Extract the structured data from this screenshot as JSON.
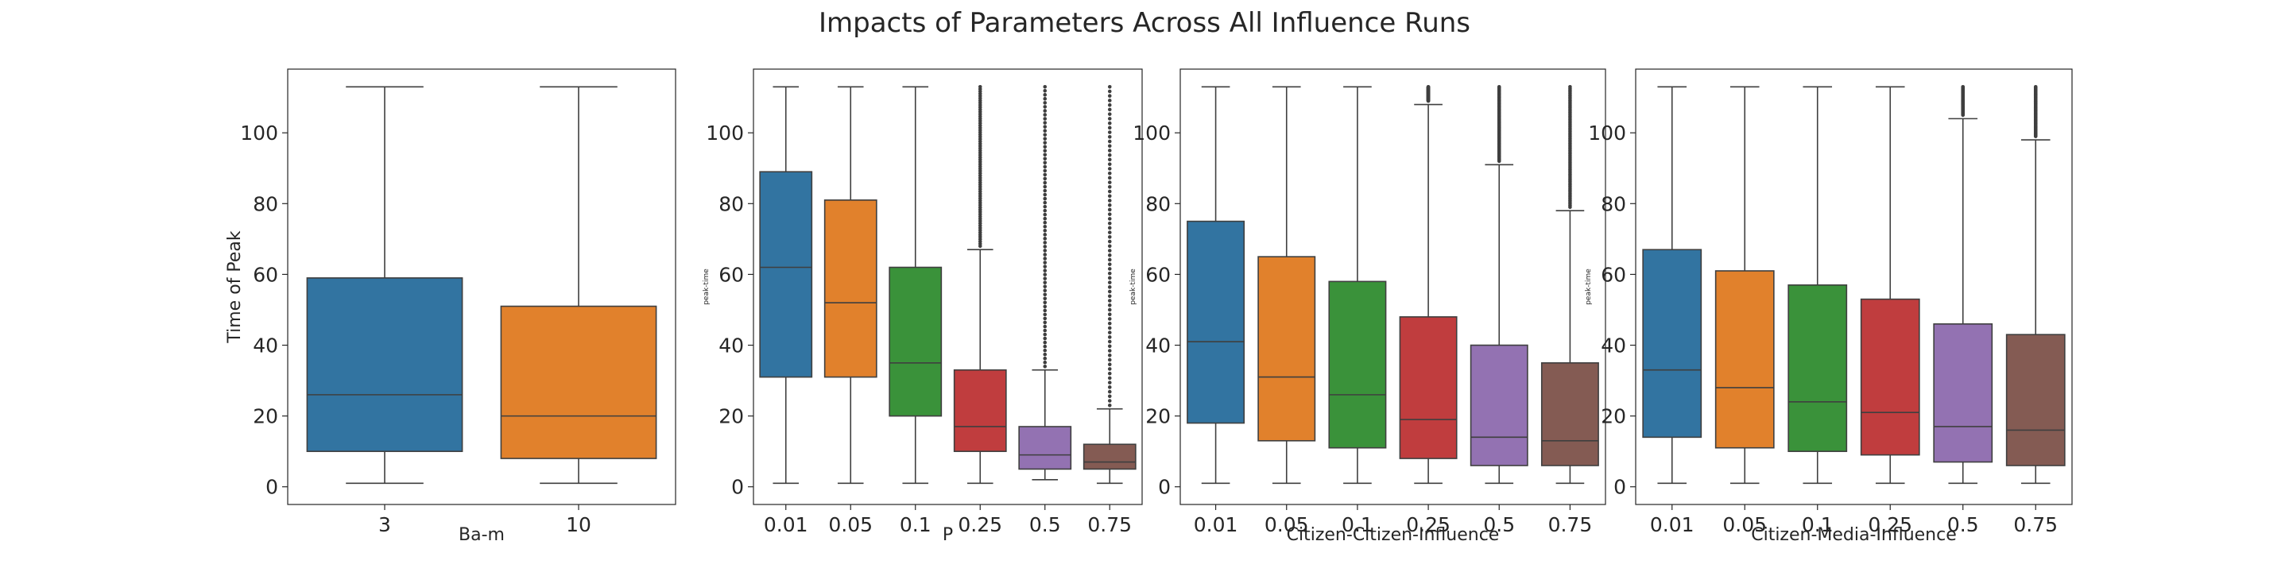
{
  "figure": {
    "title": "Impacts of Parameters Across All Influence Runs"
  },
  "colors": [
    "#3274a1",
    "#e1812c",
    "#3a923a",
    "#c03d3e",
    "#9372b2",
    "#845b53"
  ],
  "chart_data": [
    {
      "type": "box",
      "xlabel": "Ba-m",
      "ylabel": "Time of Peak",
      "ylim": [
        -5,
        118
      ],
      "yticks": [
        0,
        20,
        40,
        60,
        80,
        100
      ],
      "categories": [
        "3",
        "10"
      ],
      "boxes": [
        {
          "min": 1,
          "q1": 10,
          "median": 26,
          "q3": 59,
          "max": 113,
          "outliers": false
        },
        {
          "min": 1,
          "q1": 8,
          "median": 20,
          "q3": 51,
          "max": 113,
          "outliers": false
        }
      ]
    },
    {
      "type": "box",
      "xlabel": "P",
      "ylabel": "peak-time",
      "ylim": [
        -5,
        118
      ],
      "yticks": [
        0,
        20,
        40,
        60,
        80,
        100
      ],
      "categories": [
        "0.01",
        "0.05",
        "0.1",
        "0.25",
        "0.5",
        "0.75"
      ],
      "boxes": [
        {
          "min": 1,
          "q1": 31,
          "median": 62,
          "q3": 89,
          "max": 113,
          "outliers": false
        },
        {
          "min": 1,
          "q1": 31,
          "median": 52,
          "q3": 81,
          "max": 113,
          "outliers": false
        },
        {
          "min": 1,
          "q1": 20,
          "median": 35,
          "q3": 62,
          "max": 113,
          "outliers": false
        },
        {
          "min": 1,
          "q1": 10,
          "median": 17,
          "q3": 33,
          "max": 67,
          "outliers": true,
          "outlier_max": 113
        },
        {
          "min": 2,
          "q1": 5,
          "median": 9,
          "q3": 17,
          "max": 33,
          "outliers": true,
          "outlier_max": 113
        },
        {
          "min": 1,
          "q1": 5,
          "median": 7,
          "q3": 12,
          "max": 22,
          "outliers": true,
          "outlier_max": 113
        }
      ]
    },
    {
      "type": "box",
      "xlabel": "Citizen-Citizen-Influence",
      "ylabel": "peak-time",
      "ylim": [
        -5,
        118
      ],
      "yticks": [
        0,
        20,
        40,
        60,
        80,
        100
      ],
      "categories": [
        "0.01",
        "0.05",
        "0.1",
        "0.25",
        "0.5",
        "0.75"
      ],
      "boxes": [
        {
          "min": 1,
          "q1": 18,
          "median": 41,
          "q3": 75,
          "max": 113,
          "outliers": false
        },
        {
          "min": 1,
          "q1": 13,
          "median": 31,
          "q3": 65,
          "max": 113,
          "outliers": false
        },
        {
          "min": 1,
          "q1": 11,
          "median": 26,
          "q3": 58,
          "max": 113,
          "outliers": false
        },
        {
          "min": 1,
          "q1": 8,
          "median": 19,
          "q3": 48,
          "max": 108,
          "outliers": true,
          "outlier_max": 113
        },
        {
          "min": 1,
          "q1": 6,
          "median": 14,
          "q3": 40,
          "max": 91,
          "outliers": true,
          "outlier_max": 113
        },
        {
          "min": 1,
          "q1": 6,
          "median": 13,
          "q3": 35,
          "max": 78,
          "outliers": true,
          "outlier_max": 113
        }
      ]
    },
    {
      "type": "box",
      "xlabel": "Citizen-Media-Influence",
      "ylabel": "peak-time",
      "ylim": [
        -5,
        118
      ],
      "yticks": [
        0,
        20,
        40,
        60,
        80,
        100
      ],
      "categories": [
        "0.01",
        "0.05",
        "0.1",
        "0.25",
        "0.5",
        "0.75"
      ],
      "boxes": [
        {
          "min": 1,
          "q1": 14,
          "median": 33,
          "q3": 67,
          "max": 113,
          "outliers": false
        },
        {
          "min": 1,
          "q1": 11,
          "median": 28,
          "q3": 61,
          "max": 113,
          "outliers": false
        },
        {
          "min": 1,
          "q1": 10,
          "median": 24,
          "q3": 57,
          "max": 113,
          "outliers": false
        },
        {
          "min": 1,
          "q1": 9,
          "median": 21,
          "q3": 53,
          "max": 113,
          "outliers": false
        },
        {
          "min": 1,
          "q1": 7,
          "median": 17,
          "q3": 46,
          "max": 104,
          "outliers": true,
          "outlier_max": 113
        },
        {
          "min": 1,
          "q1": 6,
          "median": 16,
          "q3": 43,
          "max": 98,
          "outliers": true,
          "outlier_max": 113
        }
      ]
    }
  ]
}
